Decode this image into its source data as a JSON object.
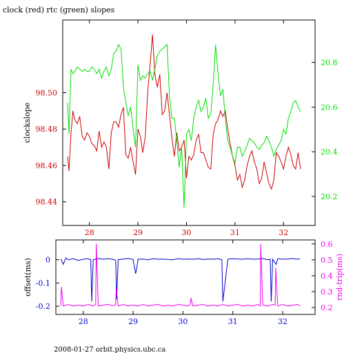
{
  "footer": "2008-01-27 orbit.physics.ubc.ca",
  "colors": {
    "clock": "#cc0000",
    "rtc": "#00dd00",
    "offset": "#0000cc",
    "rndtrip": "#ee00ee",
    "axis": "#000000"
  },
  "chart_data": [
    {
      "type": "line",
      "title": "clock (red) rtc (green) slopes",
      "xlabel": "",
      "ylabel": "clockslope",
      "y2label": "",
      "x_ticks": [
        28,
        29,
        30,
        31,
        32
      ],
      "xlim": [
        27.45,
        32.65
      ],
      "ylim": [
        98.427,
        98.54
      ],
      "y_ticks": [
        98.44,
        98.46,
        98.48,
        98.5
      ],
      "y2lim": [
        20.07,
        20.99
      ],
      "y2_ticks": [
        20.2,
        20.4,
        20.6,
        20.8
      ],
      "series": [
        {
          "name": "clock",
          "axis": "left",
          "x": [
            27.55,
            27.58,
            27.62,
            27.66,
            27.7,
            27.75,
            27.8,
            27.85,
            27.9,
            27.95,
            28.0,
            28.05,
            28.1,
            28.15,
            28.2,
            28.25,
            28.3,
            28.35,
            28.4,
            28.45,
            28.5,
            28.55,
            28.6,
            28.65,
            28.7,
            28.75,
            28.8,
            28.85,
            28.9,
            28.95,
            29.0,
            29.05,
            29.1,
            29.15,
            29.2,
            29.25,
            29.3,
            29.35,
            29.4,
            29.45,
            29.5,
            29.55,
            29.6,
            29.65,
            29.7,
            29.75,
            29.8,
            29.85,
            29.9,
            29.95,
            30.0,
            30.05,
            30.1,
            30.15,
            30.2,
            30.25,
            30.3,
            30.35,
            30.4,
            30.45,
            30.5,
            30.55,
            30.6,
            30.65,
            30.7,
            30.75,
            30.8,
            30.85,
            30.9,
            30.95,
            31.0,
            31.05,
            31.1,
            31.15,
            31.2,
            31.25,
            31.3,
            31.35,
            31.4,
            31.45,
            31.5,
            31.55,
            31.6,
            31.65,
            31.7,
            31.75,
            31.8,
            31.85,
            31.9,
            31.95,
            32.0,
            32.05,
            32.1,
            32.15,
            32.2,
            32.25,
            32.3,
            32.35
          ],
          "y": [
            98.465,
            98.457,
            98.478,
            98.49,
            98.485,
            98.483,
            98.487,
            98.476,
            98.474,
            98.478,
            98.476,
            98.472,
            98.471,
            98.468,
            98.479,
            98.47,
            98.473,
            98.47,
            98.458,
            98.478,
            98.484,
            98.484,
            98.481,
            98.488,
            98.492,
            98.466,
            98.464,
            98.47,
            98.462,
            98.455,
            98.48,
            98.476,
            98.467,
            98.476,
            98.5,
            98.515,
            98.532,
            98.51,
            98.503,
            98.51,
            98.488,
            98.49,
            98.5,
            98.488,
            98.475,
            98.465,
            98.478,
            98.468,
            98.47,
            98.474,
            98.453,
            98.465,
            98.463,
            98.466,
            98.474,
            98.477,
            98.467,
            98.467,
            98.463,
            98.459,
            98.458,
            98.477,
            98.483,
            98.485,
            98.49,
            98.487,
            98.49,
            98.48,
            98.472,
            98.465,
            98.46,
            98.452,
            98.455,
            98.448,
            98.452,
            98.46,
            98.465,
            98.468,
            98.462,
            98.458,
            98.45,
            98.453,
            98.462,
            98.456,
            98.45,
            98.447,
            98.452,
            98.467,
            98.465,
            98.462,
            98.458,
            98.465,
            98.47,
            98.466,
            98.46,
            98.458,
            98.467,
            98.458
          ]
        },
        {
          "name": "rtc",
          "axis": "right",
          "x": [
            27.55,
            27.58,
            27.62,
            27.66,
            27.7,
            27.75,
            27.8,
            27.85,
            27.9,
            27.95,
            28.0,
            28.05,
            28.1,
            28.15,
            28.2,
            28.25,
            28.3,
            28.35,
            28.4,
            28.45,
            28.5,
            28.55,
            28.6,
            28.65,
            28.7,
            28.75,
            28.8,
            28.85,
            28.9,
            28.95,
            29.0,
            29.05,
            29.1,
            29.15,
            29.2,
            29.25,
            29.3,
            29.35,
            29.4,
            29.45,
            29.5,
            29.55,
            29.6,
            29.65,
            29.7,
            29.75,
            29.8,
            29.85,
            29.9,
            29.95,
            30.0,
            30.05,
            30.1,
            30.15,
            30.2,
            30.25,
            30.3,
            30.35,
            30.4,
            30.45,
            30.5,
            30.55,
            30.6,
            30.65,
            30.7,
            30.75,
            30.8,
            30.85,
            30.9,
            30.95,
            31.0,
            31.05,
            31.1,
            31.15,
            31.2,
            31.25,
            31.3,
            31.35,
            31.4,
            31.45,
            31.5,
            31.55,
            31.6,
            31.65,
            31.7,
            31.75,
            31.8,
            31.85,
            31.9,
            31.95,
            32.0,
            32.05,
            32.1,
            32.15,
            32.2,
            32.25,
            32.3,
            32.35
          ],
          "y": [
            20.62,
            20.48,
            20.77,
            20.75,
            20.76,
            20.78,
            20.77,
            20.76,
            20.77,
            20.76,
            20.76,
            20.78,
            20.77,
            20.75,
            20.77,
            20.73,
            20.76,
            20.78,
            20.74,
            20.77,
            20.84,
            20.85,
            20.88,
            20.86,
            20.69,
            20.62,
            20.56,
            20.6,
            20.5,
            20.42,
            20.79,
            20.72,
            20.74,
            20.73,
            20.75,
            20.76,
            20.72,
            20.77,
            20.83,
            20.85,
            20.86,
            20.87,
            20.88,
            20.65,
            20.55,
            20.55,
            20.45,
            20.33,
            20.42,
            20.15,
            20.48,
            20.5,
            20.45,
            20.55,
            20.6,
            20.63,
            20.58,
            20.6,
            20.64,
            20.55,
            20.57,
            20.7,
            20.88,
            20.75,
            20.65,
            20.68,
            20.55,
            20.45,
            20.42,
            20.38,
            20.35,
            20.42,
            20.42,
            20.38,
            20.4,
            20.43,
            20.46,
            20.45,
            20.44,
            20.42,
            20.41,
            20.43,
            20.44,
            20.47,
            20.45,
            20.42,
            20.38,
            20.41,
            20.43,
            20.45,
            20.5,
            20.48,
            20.55,
            20.58,
            20.62,
            20.63,
            20.6,
            20.58
          ]
        }
      ]
    },
    {
      "type": "line",
      "title": "",
      "xlabel": "",
      "ylabel": "offset(ms)",
      "y2label": "rnd-trip(ms)",
      "x_ticks": [
        28,
        29,
        30,
        31,
        32
      ],
      "xlim": [
        27.45,
        32.65
      ],
      "ylim": [
        -0.235,
        0.085
      ],
      "y_ticks": [
        0,
        -0.1,
        -0.2
      ],
      "y2lim": [
        0.157,
        0.625
      ],
      "y2_ticks": [
        0.2,
        0.3,
        0.4,
        0.5,
        0.6
      ],
      "series": [
        {
          "name": "offset",
          "axis": "left",
          "x": [
            27.55,
            27.6,
            27.65,
            27.7,
            27.8,
            27.9,
            28.0,
            28.1,
            28.15,
            28.17,
            28.2,
            28.3,
            28.4,
            28.5,
            28.6,
            28.65,
            28.67,
            28.7,
            28.8,
            28.9,
            29.0,
            29.05,
            29.07,
            29.1,
            29.2,
            29.3,
            29.4,
            29.5,
            29.6,
            29.7,
            29.8,
            29.9,
            30.0,
            30.1,
            30.2,
            30.3,
            30.4,
            30.5,
            30.6,
            30.7,
            30.78,
            30.8,
            30.9,
            31.0,
            31.1,
            31.2,
            31.3,
            31.4,
            31.5,
            31.6,
            31.7,
            31.75,
            31.77,
            31.8,
            31.87,
            31.9,
            32.0,
            32.1,
            32.2,
            32.3,
            32.35
          ],
          "y": [
            0.004,
            -0.02,
            0.008,
            0.0,
            0.004,
            -0.003,
            0.002,
            0.004,
            0.0,
            -0.18,
            0.0,
            0.005,
            0.002,
            0.004,
            0.002,
            -0.003,
            -0.17,
            0.0,
            0.003,
            0.005,
            0.001,
            -0.06,
            -0.04,
            0.002,
            0.003,
            0.0,
            0.004,
            0.002,
            0.003,
            0.001,
            0.0,
            0.004,
            0.002,
            0.003,
            0.002,
            0.004,
            0.001,
            0.003,
            0.002,
            0.004,
            0.0,
            -0.18,
            0.002,
            0.004,
            0.003,
            0.002,
            0.004,
            0.002,
            0.003,
            0.005,
            0.0,
            0.002,
            -0.18,
            0.002,
            -0.02,
            0.004,
            0.002,
            0.003,
            0.005,
            0.002,
            0.004
          ]
        },
        {
          "name": "rnd-trip",
          "axis": "right",
          "x": [
            27.55,
            27.56,
            27.6,
            27.7,
            27.8,
            27.9,
            28.0,
            28.1,
            28.2,
            28.25,
            28.26,
            28.3,
            28.4,
            28.5,
            28.6,
            28.65,
            28.66,
            28.7,
            28.8,
            28.9,
            29.0,
            29.1,
            29.2,
            29.3,
            29.4,
            29.5,
            29.6,
            29.7,
            29.8,
            29.9,
            30.0,
            30.1,
            30.15,
            30.16,
            30.2,
            30.3,
            30.4,
            30.5,
            30.6,
            30.7,
            30.8,
            30.9,
            31.0,
            31.1,
            31.2,
            31.3,
            31.4,
            31.5,
            31.55,
            31.56,
            31.6,
            31.7,
            31.8,
            31.85,
            31.86,
            31.9,
            32.0,
            32.1,
            32.2,
            32.3,
            32.35
          ],
          "y": [
            0.21,
            0.33,
            0.21,
            0.22,
            0.21,
            0.215,
            0.21,
            0.22,
            0.21,
            0.22,
            0.6,
            0.21,
            0.215,
            0.22,
            0.21,
            0.22,
            0.32,
            0.21,
            0.22,
            0.21,
            0.215,
            0.21,
            0.22,
            0.21,
            0.215,
            0.22,
            0.21,
            0.215,
            0.21,
            0.22,
            0.215,
            0.21,
            0.22,
            0.26,
            0.21,
            0.215,
            0.22,
            0.21,
            0.215,
            0.21,
            0.22,
            0.21,
            0.215,
            0.22,
            0.21,
            0.215,
            0.21,
            0.22,
            0.21,
            0.6,
            0.215,
            0.21,
            0.22,
            0.215,
            0.45,
            0.21,
            0.22,
            0.21,
            0.215,
            0.22,
            0.21
          ]
        }
      ]
    }
  ]
}
